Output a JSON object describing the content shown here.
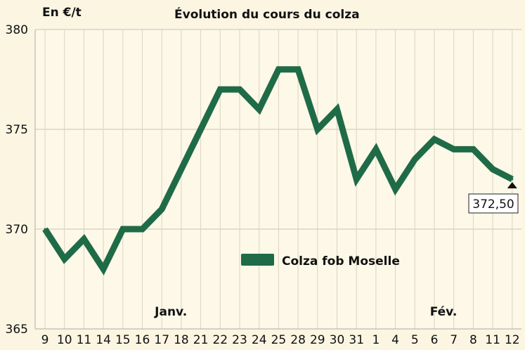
{
  "chart_data": {
    "type": "line",
    "title": "Évolution du cours du colza",
    "ylabel": "En €/t",
    "xlabel": "",
    "ylim": [
      365,
      380
    ],
    "yticks": [
      "365",
      "370",
      "375",
      "380"
    ],
    "grid": true,
    "legend_position": "center",
    "x": [
      "9",
      "10",
      "11",
      "14",
      "15",
      "16",
      "17",
      "18",
      "21",
      "22",
      "23",
      "24",
      "25",
      "28",
      "29",
      "30",
      "31",
      "1",
      "4",
      "5",
      "6",
      "7",
      "8",
      "11",
      "12"
    ],
    "month_labels": [
      {
        "label": "Janv.",
        "index": 6
      },
      {
        "label": "Fév.",
        "index": 20
      }
    ],
    "series": [
      {
        "name": "Colza fob Moselle",
        "color": "#1f6b47",
        "values": [
          370,
          368.5,
          369.5,
          368,
          370,
          370,
          371,
          373,
          375,
          377,
          377,
          376,
          378,
          378,
          375,
          376,
          372.5,
          374,
          372,
          373.5,
          374.5,
          374,
          374,
          373,
          372.5
        ]
      }
    ],
    "annotations": [
      {
        "text": "372,50",
        "index": 24
      }
    ]
  }
}
